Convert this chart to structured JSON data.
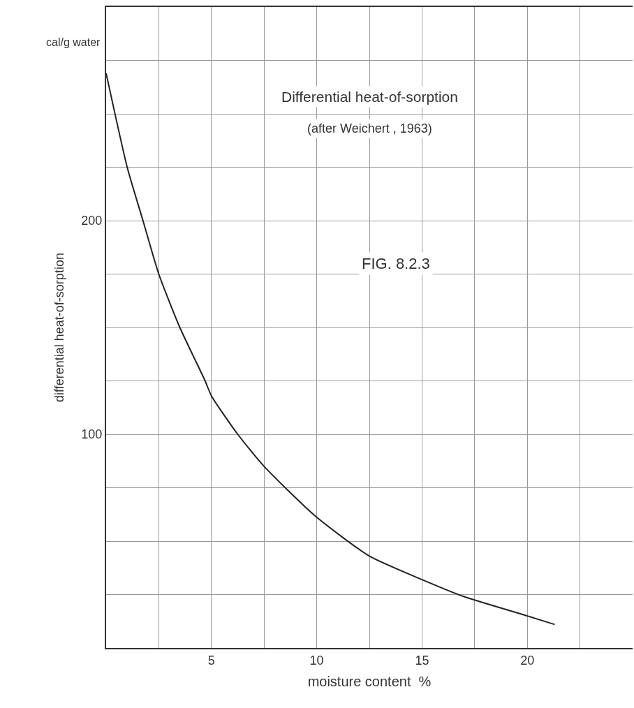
{
  "chart_data": {
    "type": "line",
    "xlabel": "moisture content  %",
    "ylabel": "differential heat-of-sorption",
    "annotations": [
      "Differential heat-of-sorption",
      "(after Weichert , 1963)",
      "FIG. 8.2.3",
      "cal/g water"
    ],
    "x": [
      0,
      1,
      1.75,
      2.5,
      3.5,
      4.7,
      5,
      6.25,
      7.5,
      9.9,
      12.5,
      15,
      17,
      20,
      21.3
    ],
    "series": [
      {
        "color": "#222222",
        "values": [
          269,
          225,
          200,
          175,
          150,
          125,
          118,
          100,
          85,
          62,
          43,
          32,
          24,
          15,
          11
        ]
      }
    ],
    "xlim": [
      0,
      25
    ],
    "xticks": [
      {
        "value": 0,
        "label": null
      },
      {
        "value": 2.5,
        "label": null
      },
      5,
      {
        "value": 7.5,
        "label": null
      },
      10,
      {
        "value": 12.5,
        "label": null
      },
      15,
      {
        "value": 17.5,
        "label": null
      },
      20,
      {
        "value": 22.5,
        "label": null
      }
    ],
    "ylim": [
      0,
      300
    ],
    "yticks": [
      {
        "value": 0,
        "label": null
      },
      {
        "value": 25,
        "label": null
      },
      {
        "value": 50,
        "label": null
      },
      {
        "value": 75,
        "label": null
      },
      100,
      {
        "value": 125,
        "label": null
      },
      {
        "value": 150,
        "label": null
      },
      {
        "value": 175,
        "label": null
      },
      200,
      {
        "value": 225,
        "label": null
      },
      {
        "value": 250,
        "label": null
      },
      {
        "value": 275,
        "label": null
      }
    ],
    "grid": true,
    "marker": "none",
    "line_style": "solid"
  }
}
